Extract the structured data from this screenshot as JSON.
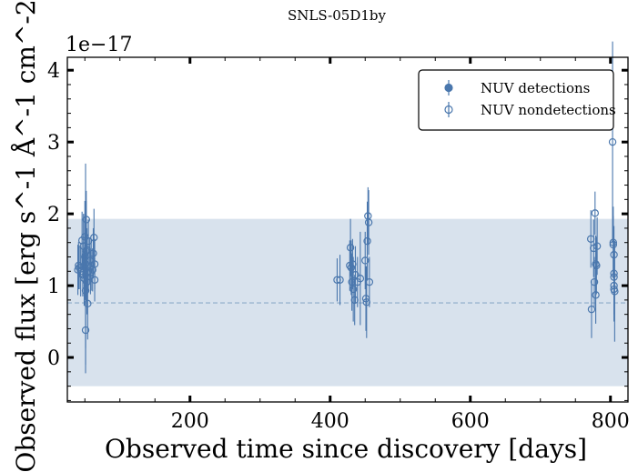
{
  "chart_data": {
    "type": "scatter",
    "title": "SNLS-05D1by",
    "xlabel": "Observed time since discovery [days]",
    "ylabel": "Observed flux [erg s^-1 Å^-1 cm^-2]",
    "y_offset_text": "1e−17",
    "xlim": [
      25,
      825
    ],
    "ylim": [
      -0.62,
      4.18
    ],
    "x_ticks": [
      200,
      400,
      600,
      800
    ],
    "x_tick_labels": [
      "200",
      "400",
      "600",
      "800"
    ],
    "y_ticks": [
      0,
      1,
      2,
      3,
      4
    ],
    "y_tick_labels": [
      "0",
      "1",
      "2",
      "3",
      "4"
    ],
    "grid": false,
    "legend_position": "top-right",
    "band": {
      "y_low": -0.4,
      "y_high": 1.93,
      "median": 0.76
    },
    "colors": {
      "series": "#4a77ad",
      "band": "#d8e2ed",
      "median_line": "#8aaac8"
    },
    "series": [
      {
        "name": "NUV detections",
        "marker": "filled",
        "points": []
      },
      {
        "name": "NUV nondetections",
        "marker": "open",
        "points": [
          {
            "x": 40,
            "y": 1.22,
            "err": 0.35
          },
          {
            "x": 41,
            "y": 1.28,
            "err": 0.33
          },
          {
            "x": 42,
            "y": 1.25,
            "err": 0.3
          },
          {
            "x": 44,
            "y": 1.2,
            "err": 0.35
          },
          {
            "x": 46,
            "y": 1.63,
            "err": 0.4
          },
          {
            "x": 47,
            "y": 1.15,
            "err": 0.3
          },
          {
            "x": 48,
            "y": 1.55,
            "err": 0.45
          },
          {
            "x": 49,
            "y": 1.1,
            "err": 0.38
          },
          {
            "x": 50,
            "y": 1.68,
            "err": 0.5
          },
          {
            "x": 50,
            "y": 1.4,
            "err": 0.6
          },
          {
            "x": 51,
            "y": 0.93,
            "err": 0.8
          },
          {
            "x": 51,
            "y": 1.3,
            "err": 1.4
          },
          {
            "x": 51,
            "y": 0.38,
            "err": 0.6
          },
          {
            "x": 52,
            "y": 1.48,
            "err": 0.7
          },
          {
            "x": 52,
            "y": 1.92,
            "err": 0.4
          },
          {
            "x": 53,
            "y": 1.5,
            "err": 0.3
          },
          {
            "x": 53,
            "y": 1.05,
            "err": 0.45
          },
          {
            "x": 54,
            "y": 0.75,
            "err": 0.5
          },
          {
            "x": 55,
            "y": 1.62,
            "err": 0.3
          },
          {
            "x": 55,
            "y": 1.2,
            "err": 0.28
          },
          {
            "x": 57,
            "y": 1.35,
            "err": 0.32
          },
          {
            "x": 58,
            "y": 1.18,
            "err": 0.3
          },
          {
            "x": 59,
            "y": 1.28,
            "err": 0.35
          },
          {
            "x": 61,
            "y": 1.22,
            "err": 0.3
          },
          {
            "x": 62,
            "y": 1.45,
            "err": 0.35
          },
          {
            "x": 63,
            "y": 1.67,
            "err": 0.4
          },
          {
            "x": 64,
            "y": 1.08,
            "err": 0.3
          },
          {
            "x": 64,
            "y": 1.3,
            "err": 0.35
          },
          {
            "x": 410,
            "y": 1.08,
            "err": 0.3
          },
          {
            "x": 414,
            "y": 1.08,
            "err": 0.35
          },
          {
            "x": 428,
            "y": 1.28,
            "err": 0.35
          },
          {
            "x": 429,
            "y": 1.53,
            "err": 0.4
          },
          {
            "x": 430,
            "y": 1.25,
            "err": 0.38
          },
          {
            "x": 431,
            "y": 1.05,
            "err": 0.4
          },
          {
            "x": 432,
            "y": 1.3,
            "err": 0.35
          },
          {
            "x": 433,
            "y": 0.95,
            "err": 0.45
          },
          {
            "x": 435,
            "y": 0.8,
            "err": 0.35
          },
          {
            "x": 436,
            "y": 1.15,
            "err": 0.4
          },
          {
            "x": 439,
            "y": 1.05,
            "err": 0.35
          },
          {
            "x": 443,
            "y": 1.1,
            "err": 0.65
          },
          {
            "x": 450,
            "y": 1.35,
            "err": 0.4
          },
          {
            "x": 451,
            "y": 0.82,
            "err": 0.45
          },
          {
            "x": 452,
            "y": 0.77,
            "err": 0.5
          },
          {
            "x": 453,
            "y": 1.62,
            "err": 0.55
          },
          {
            "x": 454,
            "y": 1.97,
            "err": 0.4
          },
          {
            "x": 455,
            "y": 1.88,
            "err": 0.45
          },
          {
            "x": 456,
            "y": 1.05,
            "err": 0.35
          },
          {
            "x": 772,
            "y": 1.65,
            "err": 0.4
          },
          {
            "x": 773,
            "y": 0.67,
            "err": 0.4
          },
          {
            "x": 776,
            "y": 1.52,
            "err": 0.4
          },
          {
            "x": 777,
            "y": 1.05,
            "err": 0.35
          },
          {
            "x": 778,
            "y": 2.01,
            "err": 0.3
          },
          {
            "x": 779,
            "y": 1.3,
            "err": 0.4
          },
          {
            "x": 779,
            "y": 0.87,
            "err": 0.4
          },
          {
            "x": 780,
            "y": 1.28,
            "err": 0.4
          },
          {
            "x": 781,
            "y": 1.55,
            "err": 0.4
          },
          {
            "x": 803,
            "y": 3.0,
            "err": 1.4
          },
          {
            "x": 804,
            "y": 1.57,
            "err": 0.4
          },
          {
            "x": 804,
            "y": 1.6,
            "err": 0.5
          },
          {
            "x": 805,
            "y": 1.43,
            "err": 0.4
          },
          {
            "x": 805,
            "y": 1.17,
            "err": 0.35
          },
          {
            "x": 805,
            "y": 1.12,
            "err": 0.4
          },
          {
            "x": 805,
            "y": 1.0,
            "err": 0.4
          },
          {
            "x": 805,
            "y": 0.95,
            "err": 0.45
          },
          {
            "x": 806,
            "y": 0.92,
            "err": 0.7
          }
        ]
      }
    ]
  }
}
